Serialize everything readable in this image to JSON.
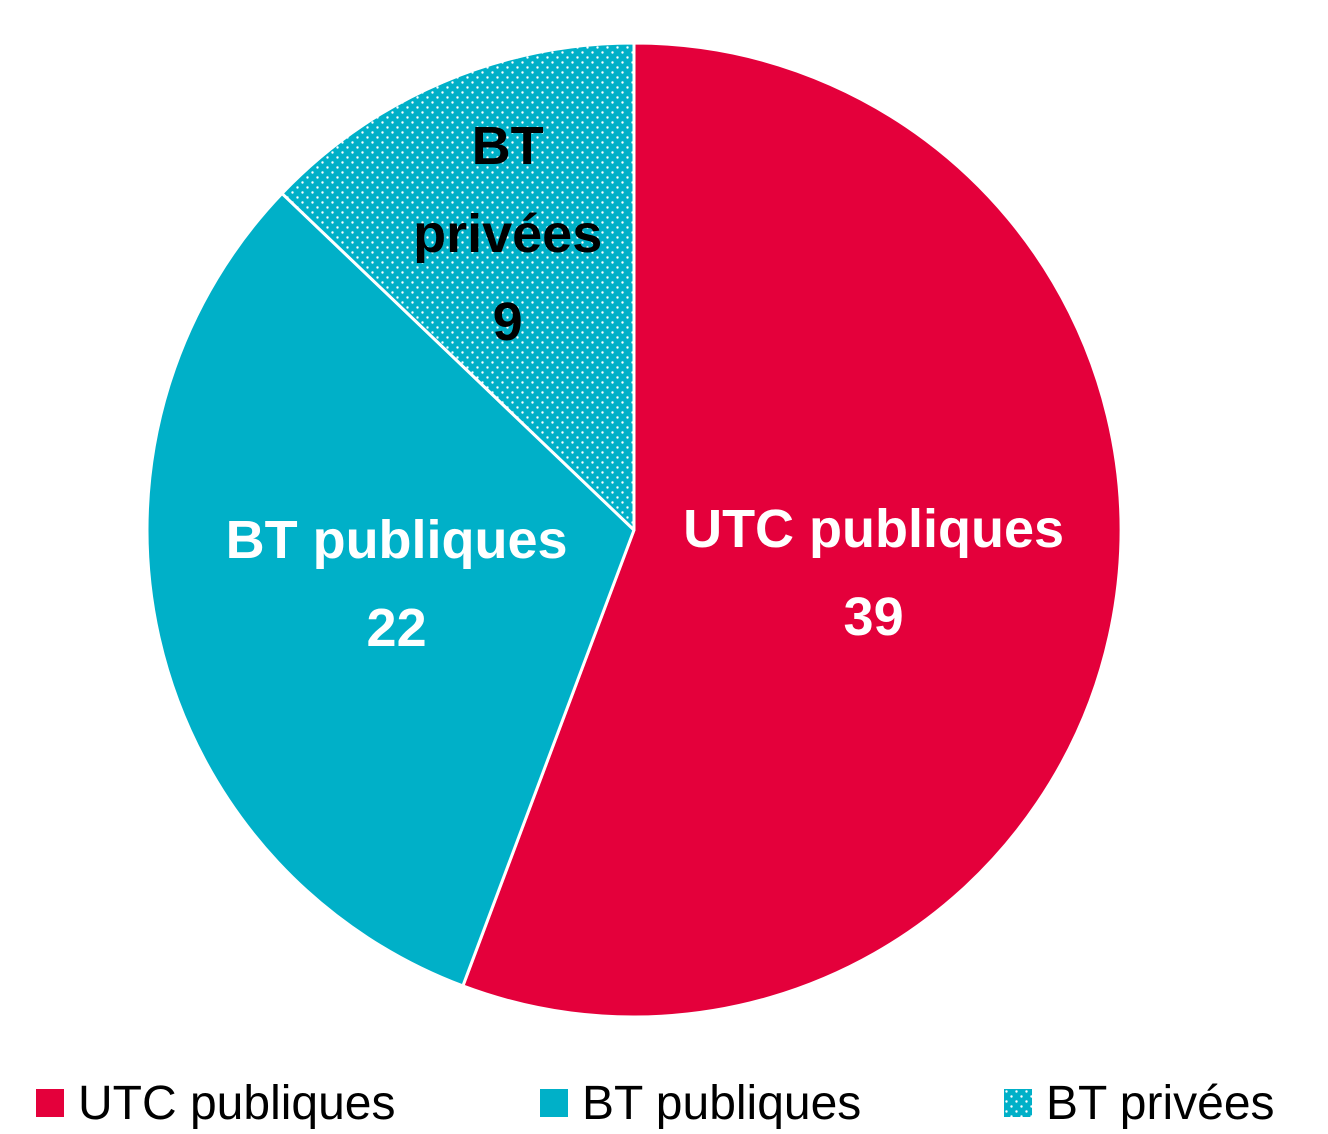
{
  "chart_data": {
    "type": "pie",
    "categories": [
      "UTC publiques",
      "BT publiques",
      "BT privées"
    ],
    "values": [
      39,
      22,
      9
    ],
    "colors": [
      "#e4003b",
      "#00b0c8",
      "#00b0c8"
    ],
    "patterns": [
      "solid",
      "solid",
      "dots"
    ],
    "label_colors": [
      "#ffffff",
      "#ffffff",
      "#000000"
    ],
    "legend": "bottom"
  }
}
